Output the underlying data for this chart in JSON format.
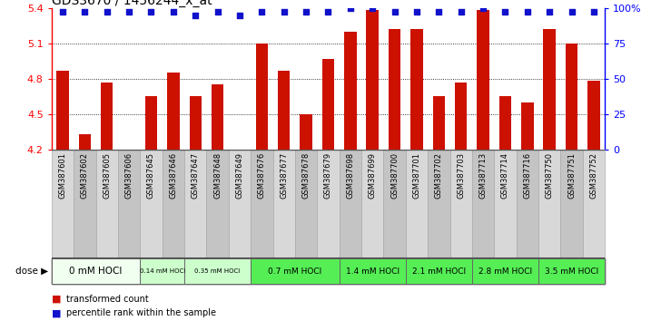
{
  "title": "GDS3670 / 1456244_x_at",
  "samples": [
    "GSM387601",
    "GSM387602",
    "GSM387605",
    "GSM387606",
    "GSM387645",
    "GSM387646",
    "GSM387647",
    "GSM387648",
    "GSM387649",
    "GSM387676",
    "GSM387677",
    "GSM387678",
    "GSM387679",
    "GSM387698",
    "GSM387699",
    "GSM387700",
    "GSM387701",
    "GSM387702",
    "GSM387703",
    "GSM387713",
    "GSM387714",
    "GSM387716",
    "GSM387750",
    "GSM387751",
    "GSM387752"
  ],
  "bar_values": [
    4.87,
    4.33,
    4.77,
    4.2,
    4.65,
    4.85,
    4.65,
    4.75,
    4.2,
    5.1,
    4.87,
    4.5,
    4.97,
    5.2,
    5.38,
    5.22,
    5.22,
    4.65,
    4.77,
    5.38,
    4.65,
    4.6,
    5.22,
    5.1,
    4.78
  ],
  "percentile_values": [
    5.37,
    5.37,
    5.37,
    5.37,
    5.37,
    5.37,
    5.34,
    5.37,
    5.34,
    5.37,
    5.37,
    5.37,
    5.37,
    5.4,
    5.4,
    5.37,
    5.37,
    5.37,
    5.37,
    5.4,
    5.37,
    5.37,
    5.37,
    5.37,
    5.37
  ],
  "dose_groups": [
    {
      "label": "0 mM HOCl",
      "start": 0,
      "end": 4,
      "color": "#f0fff0"
    },
    {
      "label": "0.14 mM HOCl",
      "start": 4,
      "end": 6,
      "color": "#ccffcc"
    },
    {
      "label": "0.35 mM HOCl",
      "start": 6,
      "end": 9,
      "color": "#ccffcc"
    },
    {
      "label": "0.7 mM HOCl",
      "start": 9,
      "end": 13,
      "color": "#55ee55"
    },
    {
      "label": "1.4 mM HOCl",
      "start": 13,
      "end": 16,
      "color": "#55ee55"
    },
    {
      "label": "2.1 mM HOCl",
      "start": 16,
      "end": 19,
      "color": "#55ee55"
    },
    {
      "label": "2.8 mM HOCl",
      "start": 19,
      "end": 22,
      "color": "#55ee55"
    },
    {
      "label": "3.5 mM HOCl",
      "start": 22,
      "end": 25,
      "color": "#55ee55"
    }
  ],
  "ylim_min": 4.2,
  "ylim_max": 5.4,
  "yticks": [
    4.2,
    4.5,
    4.8,
    5.1,
    5.4
  ],
  "right_yticks_pct": [
    0,
    25,
    50,
    75,
    100
  ],
  "bar_color": "#cc1100",
  "percentile_color": "#1111cc",
  "bg_color": "#ffffff",
  "sample_box_color_even": "#d8d8d8",
  "sample_box_color_odd": "#c4c4c4",
  "title_fontsize": 10,
  "legend_bar_label": "transformed count",
  "legend_pct_label": "percentile rank within the sample",
  "dose_label": "dose"
}
